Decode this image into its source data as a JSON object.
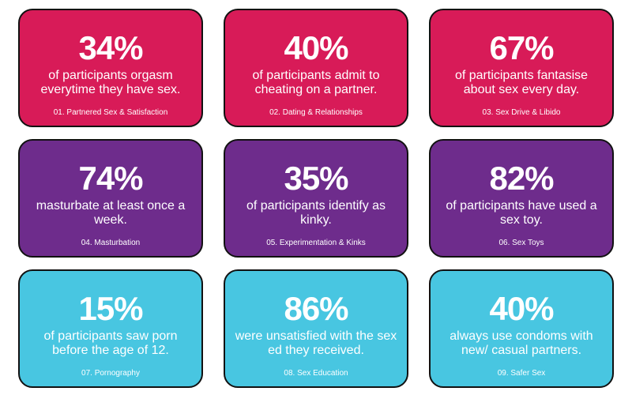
{
  "colors": {
    "pink": "#d81b58",
    "purple": "#6e2c8c",
    "cyan": "#48c6e1",
    "border": "#111111"
  },
  "cards": [
    {
      "percent": "34%",
      "description": "of participants orgasm everytime they have sex.",
      "category": "01. Partnered Sex & Satisfaction"
    },
    {
      "percent": "40%",
      "description": "of participants admit to cheating on a partner.",
      "category": "02. Dating & Relationships"
    },
    {
      "percent": "67%",
      "description": "of participants fantasise about sex every day.",
      "category": "03. Sex Drive & Libido"
    },
    {
      "percent": "74%",
      "description": "masturbate at least once a week.",
      "category": "04. Masturbation"
    },
    {
      "percent": "35%",
      "description": "of participants identify as kinky.",
      "category": "05. Experimentation & Kinks"
    },
    {
      "percent": "82%",
      "description": "of participants have used a sex toy.",
      "category": "06. Sex Toys"
    },
    {
      "percent": "15%",
      "description": "of participants saw porn before the age of 12.",
      "category": "07. Pornography"
    },
    {
      "percent": "86%",
      "description": "were unsatisfied with the sex ed they received.",
      "category": "08. Sex Education"
    },
    {
      "percent": "40%",
      "description": "always use condoms with new/ casual partners.",
      "category": "09. Safer Sex"
    }
  ]
}
